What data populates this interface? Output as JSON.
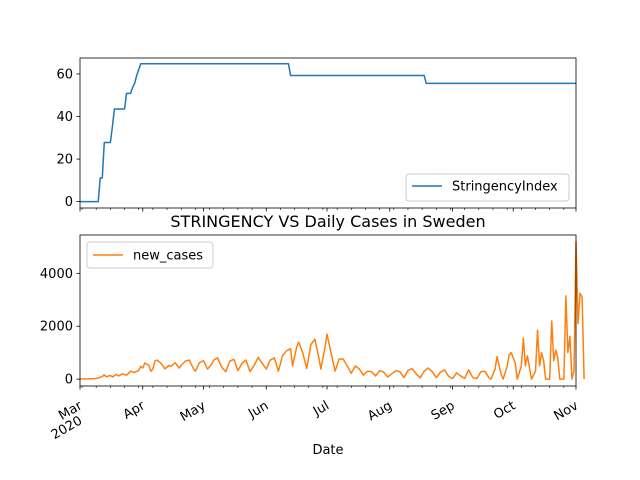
{
  "chart_data": [
    {
      "type": "line",
      "title": "",
      "xlabel": "",
      "ylabel": "",
      "x_ticks": [],
      "y_ticks": [
        "0",
        "20",
        "40",
        "60"
      ],
      "ylim": [
        -3,
        67.5
      ],
      "legend_position": "lower-right",
      "series": [
        {
          "name": "StringencyIndex",
          "color": "#1f77b4",
          "points": [
            [
              "2020-03-01",
              0
            ],
            [
              "2020-03-10",
              0
            ],
            [
              "2020-03-11",
              11.1
            ],
            [
              "2020-03-12",
              11.1
            ],
            [
              "2020-03-13",
              27.8
            ],
            [
              "2020-03-16",
              27.8
            ],
            [
              "2020-03-17",
              35.2
            ],
            [
              "2020-03-18",
              43.5
            ],
            [
              "2020-03-23",
              43.5
            ],
            [
              "2020-03-24",
              50.9
            ],
            [
              "2020-03-26",
              50.9
            ],
            [
              "2020-03-27",
              53.7
            ],
            [
              "2020-03-28",
              55.6
            ],
            [
              "2020-03-29",
              59.3
            ],
            [
              "2020-03-31",
              64.8
            ],
            [
              "2020-06-12",
              64.8
            ],
            [
              "2020-06-13",
              59.3
            ],
            [
              "2020-08-18",
              59.3
            ],
            [
              "2020-08-19",
              55.6
            ],
            [
              "2020-11-01",
              55.6
            ]
          ]
        }
      ]
    },
    {
      "type": "line",
      "title": "STRINGENCY VS Daily Cases in Sweden",
      "xlabel": "Date",
      "ylabel": "",
      "x_ticks": [
        {
          "date": "2020-03-01",
          "label": "Mar",
          "sublabel": "2020"
        },
        {
          "date": "2020-04-01",
          "label": "Apr"
        },
        {
          "date": "2020-05-01",
          "label": "May"
        },
        {
          "date": "2020-06-01",
          "label": "Jun"
        },
        {
          "date": "2020-07-01",
          "label": "Jul"
        },
        {
          "date": "2020-08-01",
          "label": "Aug"
        },
        {
          "date": "2020-09-01",
          "label": "Sep"
        },
        {
          "date": "2020-10-01",
          "label": "Oct"
        },
        {
          "date": "2020-11-01",
          "label": "Nov"
        }
      ],
      "y_ticks": [
        "0",
        "2000",
        "4000"
      ],
      "ylim": [
        -260,
        5450
      ],
      "legend_position": "upper-left",
      "series": [
        {
          "name": "new_cases",
          "color": "#ff7f0e",
          "points": [
            [
              "2020-03-01",
              5
            ],
            [
              "2020-03-05",
              10
            ],
            [
              "2020-03-08",
              20
            ],
            [
              "2020-03-10",
              40
            ],
            [
              "2020-03-12",
              100
            ],
            [
              "2020-03-13",
              160
            ],
            [
              "2020-03-14",
              90
            ],
            [
              "2020-03-16",
              140
            ],
            [
              "2020-03-17",
              80
            ],
            [
              "2020-03-19",
              180
            ],
            [
              "2020-03-20",
              120
            ],
            [
              "2020-03-22",
              200
            ],
            [
              "2020-03-24",
              150
            ],
            [
              "2020-03-26",
              300
            ],
            [
              "2020-03-28",
              250
            ],
            [
              "2020-03-30",
              330
            ],
            [
              "2020-03-31",
              480
            ],
            [
              "2020-04-01",
              420
            ],
            [
              "2020-04-02",
              610
            ],
            [
              "2020-04-04",
              520
            ],
            [
              "2020-04-05",
              300
            ],
            [
              "2020-04-06",
              380
            ],
            [
              "2020-04-07",
              680
            ],
            [
              "2020-04-08",
              720
            ],
            [
              "2020-04-10",
              600
            ],
            [
              "2020-04-12",
              390
            ],
            [
              "2020-04-14",
              520
            ],
            [
              "2020-04-15",
              490
            ],
            [
              "2020-04-17",
              620
            ],
            [
              "2020-04-19",
              420
            ],
            [
              "2020-04-20",
              520
            ],
            [
              "2020-04-22",
              680
            ],
            [
              "2020-04-24",
              720
            ],
            [
              "2020-04-26",
              400
            ],
            [
              "2020-04-27",
              300
            ],
            [
              "2020-04-29",
              620
            ],
            [
              "2020-05-01",
              700
            ],
            [
              "2020-05-03",
              380
            ],
            [
              "2020-05-05",
              560
            ],
            [
              "2020-05-06",
              720
            ],
            [
              "2020-05-08",
              800
            ],
            [
              "2020-05-10",
              450
            ],
            [
              "2020-05-12",
              280
            ],
            [
              "2020-05-14",
              680
            ],
            [
              "2020-05-16",
              750
            ],
            [
              "2020-05-18",
              320
            ],
            [
              "2020-05-20",
              600
            ],
            [
              "2020-05-22",
              720
            ],
            [
              "2020-05-24",
              280
            ],
            [
              "2020-05-26",
              520
            ],
            [
              "2020-05-28",
              820
            ],
            [
              "2020-05-30",
              600
            ],
            [
              "2020-06-01",
              380
            ],
            [
              "2020-06-03",
              720
            ],
            [
              "2020-06-05",
              800
            ],
            [
              "2020-06-07",
              300
            ],
            [
              "2020-06-09",
              880
            ],
            [
              "2020-06-11",
              1070
            ],
            [
              "2020-06-13",
              1150
            ],
            [
              "2020-06-14",
              500
            ],
            [
              "2020-06-16",
              1200
            ],
            [
              "2020-06-17",
              1400
            ],
            [
              "2020-06-19",
              1000
            ],
            [
              "2020-06-21",
              400
            ],
            [
              "2020-06-23",
              1300
            ],
            [
              "2020-06-25",
              1510
            ],
            [
              "2020-06-27",
              800
            ],
            [
              "2020-06-28",
              380
            ],
            [
              "2020-06-30",
              1200
            ],
            [
              "2020-07-01",
              1700
            ],
            [
              "2020-07-03",
              1000
            ],
            [
              "2020-07-05",
              300
            ],
            [
              "2020-07-07",
              760
            ],
            [
              "2020-07-09",
              760
            ],
            [
              "2020-07-11",
              500
            ],
            [
              "2020-07-13",
              220
            ],
            [
              "2020-07-15",
              500
            ],
            [
              "2020-07-17",
              380
            ],
            [
              "2020-07-19",
              150
            ],
            [
              "2020-07-21",
              300
            ],
            [
              "2020-07-23",
              280
            ],
            [
              "2020-07-25",
              120
            ],
            [
              "2020-07-27",
              320
            ],
            [
              "2020-07-29",
              260
            ],
            [
              "2020-07-31",
              80
            ],
            [
              "2020-08-02",
              200
            ],
            [
              "2020-08-04",
              320
            ],
            [
              "2020-08-06",
              280
            ],
            [
              "2020-08-08",
              60
            ],
            [
              "2020-08-10",
              330
            ],
            [
              "2020-08-12",
              400
            ],
            [
              "2020-08-14",
              200
            ],
            [
              "2020-08-16",
              50
            ],
            [
              "2020-08-18",
              300
            ],
            [
              "2020-08-20",
              420
            ],
            [
              "2020-08-22",
              280
            ],
            [
              "2020-08-24",
              50
            ],
            [
              "2020-08-26",
              260
            ],
            [
              "2020-08-28",
              350
            ],
            [
              "2020-08-30",
              120
            ],
            [
              "2020-09-01",
              20
            ],
            [
              "2020-09-03",
              240
            ],
            [
              "2020-09-05",
              120
            ],
            [
              "2020-09-07",
              30
            ],
            [
              "2020-09-09",
              350
            ],
            [
              "2020-09-11",
              60
            ],
            [
              "2020-09-13",
              20
            ],
            [
              "2020-09-15",
              280
            ],
            [
              "2020-09-17",
              300
            ],
            [
              "2020-09-19",
              50
            ],
            [
              "2020-09-20",
              0
            ],
            [
              "2020-09-22",
              380
            ],
            [
              "2020-09-23",
              850
            ],
            [
              "2020-09-25",
              200
            ],
            [
              "2020-09-26",
              0
            ],
            [
              "2020-09-28",
              480
            ],
            [
              "2020-09-29",
              920
            ],
            [
              "2020-09-30",
              1000
            ],
            [
              "2020-10-02",
              600
            ],
            [
              "2020-10-03",
              0
            ],
            [
              "2020-10-05",
              500
            ],
            [
              "2020-10-06",
              1550
            ],
            [
              "2020-10-07",
              500
            ],
            [
              "2020-10-08",
              880
            ],
            [
              "2020-10-10",
              0
            ],
            [
              "2020-10-12",
              300
            ],
            [
              "2020-10-13",
              1850
            ],
            [
              "2020-10-14",
              500
            ],
            [
              "2020-10-15",
              1000
            ],
            [
              "2020-10-16",
              700
            ],
            [
              "2020-10-17",
              0
            ],
            [
              "2020-10-19",
              0
            ],
            [
              "2020-10-20",
              2200
            ],
            [
              "2020-10-21",
              700
            ],
            [
              "2020-10-22",
              1100
            ],
            [
              "2020-10-23",
              800
            ],
            [
              "2020-10-24",
              0
            ],
            [
              "2020-10-26",
              0
            ],
            [
              "2020-10-27",
              3150
            ],
            [
              "2020-10-28",
              1000
            ],
            [
              "2020-10-29",
              1620
            ],
            [
              "2020-10-29",
              1600
            ],
            [
              "2020-10-30",
              0
            ],
            [
              "2020-10-31",
              300
            ],
            [
              "2020-11-01",
              5200
            ],
            [
              "2020-11-02",
              2100
            ],
            [
              "2020-11-03",
              3250
            ],
            [
              "2020-11-04",
              3100
            ],
            [
              "2020-11-05",
              0
            ]
          ]
        }
      ]
    }
  ]
}
